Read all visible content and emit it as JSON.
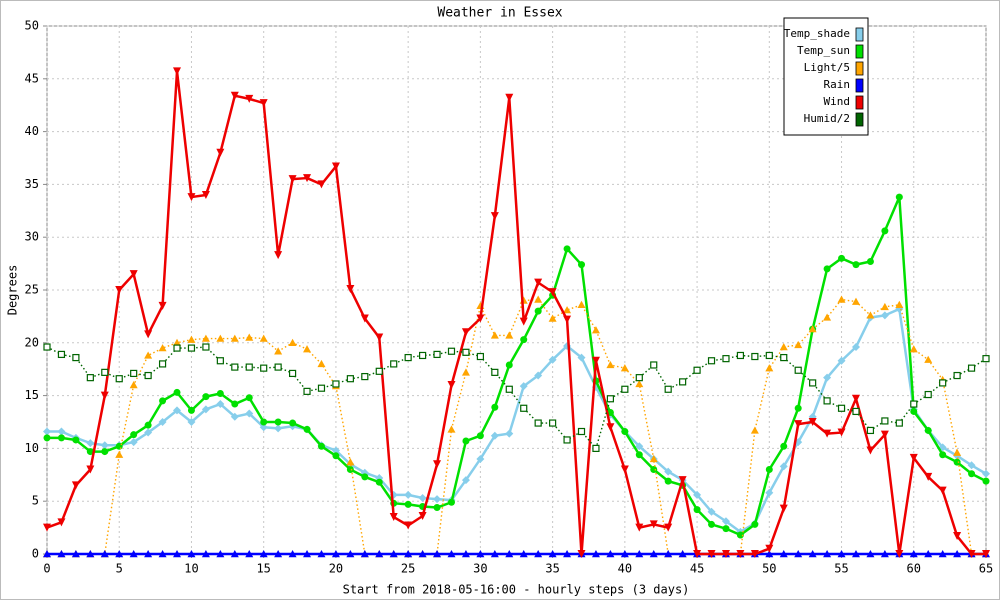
{
  "chart_data": {
    "type": "line",
    "title": "Weather in Essex",
    "x_label": "Start from 2018-05-16:00 - hourly steps (3 days)",
    "y_label": "Degrees",
    "x": [
      0,
      1,
      2,
      3,
      4,
      5,
      6,
      7,
      8,
      9,
      10,
      11,
      12,
      13,
      14,
      15,
      16,
      17,
      18,
      19,
      20,
      21,
      22,
      23,
      24,
      25,
      26,
      27,
      28,
      29,
      30,
      31,
      32,
      33,
      34,
      35,
      36,
      37,
      38,
      39,
      40,
      41,
      42,
      43,
      44,
      45,
      46,
      47,
      48,
      49,
      50,
      51,
      52,
      53,
      54,
      55,
      56,
      57,
      58,
      59,
      60,
      61,
      62,
      63,
      64,
      65
    ],
    "xlim": [
      0,
      65
    ],
    "xticks": [
      0,
      5,
      10,
      15,
      20,
      25,
      30,
      35,
      40,
      45,
      50,
      55,
      60,
      65
    ],
    "ylim": [
      0,
      50
    ],
    "yticks": [
      0,
      5,
      10,
      15,
      20,
      25,
      30,
      35,
      40,
      45,
      50
    ],
    "grid": true,
    "legend": "upper right",
    "series": [
      {
        "name": "Temp_shade",
        "color": "#87ceeb",
        "marker": "diamond",
        "line_style": "solid",
        "values": [
          11.6,
          11.6,
          11,
          10.5,
          10.3,
          10.3,
          10.6,
          11.5,
          12.5,
          13.6,
          12.5,
          13.7,
          14.2,
          13,
          13.3,
          12,
          11.9,
          12.1,
          11.8,
          10.3,
          9.8,
          8.5,
          7.7,
          7.2,
          5.6,
          5.6,
          5.3,
          5.2,
          5.1,
          7,
          9,
          11.2,
          11.4,
          15.9,
          16.9,
          18.4,
          19.7,
          18.6,
          15.8,
          13.2,
          11.6,
          10.2,
          9,
          7.8,
          7,
          5.6,
          4,
          3.1,
          2.1,
          2.9,
          5.8,
          8.3,
          10.6,
          13,
          16.7,
          18.3,
          19.6,
          22.4,
          22.6,
          23.2,
          13.7,
          11.7,
          10.1,
          9.3,
          8.4,
          7.6
        ]
      },
      {
        "name": "Temp_sun",
        "color": "#00e000",
        "marker": "circle",
        "line_style": "solid",
        "values": [
          11,
          11,
          10.8,
          9.7,
          9.7,
          10.2,
          11.3,
          12.2,
          14.5,
          15.3,
          13.6,
          14.9,
          15.2,
          14.2,
          14.8,
          12.5,
          12.5,
          12.4,
          11.8,
          10.2,
          9.3,
          8,
          7.3,
          6.8,
          4.8,
          4.7,
          4.5,
          4.4,
          4.9,
          10.7,
          11.2,
          13.9,
          17.9,
          20.3,
          23,
          24.5,
          28.9,
          27.4,
          16.4,
          13.4,
          11.6,
          9.4,
          8,
          6.9,
          6.5,
          4.2,
          2.8,
          2.4,
          1.8,
          2.8,
          8,
          10.2,
          13.8,
          21.3,
          27,
          28,
          27.4,
          27.7,
          30.6,
          33.8,
          13.5,
          11.7,
          9.4,
          8.7,
          7.6,
          6.9
        ]
      },
      {
        "name": "Light/5",
        "color": "#ffa500",
        "marker": "triangle-up",
        "line_style": "dotted",
        "values": [
          0,
          0,
          0,
          0,
          0,
          9.4,
          16,
          18.8,
          19.5,
          20,
          20.3,
          20.4,
          20.4,
          20.4,
          20.5,
          20.4,
          19.2,
          20,
          19.4,
          18,
          15.9,
          8.7,
          0,
          0,
          0,
          0,
          0,
          0,
          11.8,
          17.2,
          23.5,
          20.7,
          20.7,
          24,
          24.1,
          22.3,
          23.1,
          23.6,
          21.2,
          17.9,
          17.6,
          16.1,
          9,
          0,
          0,
          0,
          0,
          0,
          0,
          11.7,
          17.6,
          19.6,
          19.8,
          21.3,
          22.4,
          24.1,
          23.9,
          22.6,
          23.4,
          23.6,
          19.4,
          18.4,
          16.5,
          9.6,
          0,
          0
        ]
      },
      {
        "name": "Rain",
        "color": "#0000ff",
        "marker": "triangle-up",
        "line_style": "solid",
        "values": [
          0,
          0,
          0,
          0,
          0,
          0,
          0,
          0,
          0,
          0,
          0,
          0,
          0,
          0,
          0,
          0,
          0,
          0,
          0,
          0,
          0,
          0,
          0,
          0,
          0,
          0,
          0,
          0,
          0,
          0,
          0,
          0,
          0,
          0,
          0,
          0,
          0,
          0,
          0,
          0,
          0,
          0,
          0,
          0,
          0,
          0,
          0,
          0,
          0,
          0,
          0,
          0,
          0,
          0,
          0,
          0,
          0,
          0,
          0,
          0,
          0,
          0,
          0,
          0,
          0,
          0
        ]
      },
      {
        "name": "Wind",
        "color": "#ee0000",
        "marker": "triangle-down",
        "line_style": "solid",
        "values": [
          2.5,
          3,
          6.5,
          8,
          15,
          25,
          26.5,
          20.8,
          23.5,
          45.7,
          33.8,
          34,
          38,
          43.4,
          43.1,
          42.7,
          28.3,
          35.5,
          35.6,
          35,
          36.7,
          25.1,
          22.3,
          20.5,
          3.5,
          2.7,
          3.6,
          8.5,
          16,
          21,
          22.3,
          32,
          43.2,
          22,
          25.7,
          24.8,
          22.2,
          0,
          18.3,
          12,
          8,
          2.5,
          2.8,
          2.5,
          7,
          0,
          0,
          0,
          0,
          0,
          0.5,
          4.3,
          12.3,
          12.5,
          11.4,
          11.5,
          14.7,
          9.8,
          11.3,
          0,
          9.1,
          7.3,
          6,
          1.7,
          0,
          0
        ]
      },
      {
        "name": "Humid/2",
        "color": "#006400",
        "marker": "square",
        "line_style": "dotted",
        "values": [
          19.6,
          18.9,
          18.6,
          16.7,
          17.2,
          16.6,
          17.1,
          16.9,
          18,
          19.5,
          19.5,
          19.6,
          18.3,
          17.7,
          17.7,
          17.6,
          17.7,
          17.1,
          15.4,
          15.7,
          16.1,
          16.6,
          16.8,
          17.3,
          18,
          18.6,
          18.8,
          18.9,
          19.2,
          19.1,
          18.7,
          17.2,
          15.6,
          13.8,
          12.4,
          12.4,
          10.8,
          11.6,
          10,
          14.7,
          15.6,
          16.7,
          17.9,
          15.6,
          16.3,
          17.4,
          18.3,
          18.5,
          18.8,
          18.7,
          18.8,
          18.6,
          17.4,
          16.2,
          14.5,
          13.8,
          13.5,
          11.7,
          12.6,
          12.4,
          14.2,
          15.1,
          16.2,
          16.9,
          17.6,
          18.5
        ]
      }
    ]
  }
}
